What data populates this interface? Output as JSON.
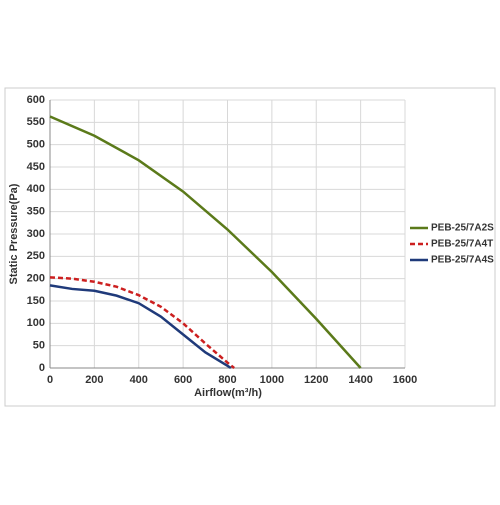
{
  "chart_data": {
    "type": "line",
    "xlabel": "Airflow(m³/h)",
    "ylabel": "Static Pressure(Pa)",
    "xlim": [
      0,
      1600
    ],
    "xticks": [
      0,
      200,
      400,
      600,
      800,
      1000,
      1200,
      1400,
      1600
    ],
    "ylim": [
      0,
      600
    ],
    "yticks": [
      0,
      50,
      100,
      150,
      200,
      250,
      300,
      350,
      400,
      450,
      500,
      550,
      600
    ],
    "grid": true,
    "legend": "right",
    "series": [
      {
        "name": "PEB-25/7A2S",
        "color": "#5b7a1a",
        "dashed": false,
        "x": [
          0,
          200,
          400,
          600,
          800,
          1000,
          1200,
          1400
        ],
        "values": [
          563,
          520,
          465,
          395,
          310,
          215,
          110,
          0
        ]
      },
      {
        "name": "PEB-25/7A4T",
        "color": "#cc1f1f",
        "dashed": true,
        "x": [
          0,
          100,
          200,
          300,
          400,
          500,
          600,
          700,
          800,
          830
        ],
        "values": [
          203,
          200,
          193,
          182,
          163,
          137,
          100,
          55,
          12,
          0
        ]
      },
      {
        "name": "PEB-25/7A4S",
        "color": "#1f3a7a",
        "dashed": false,
        "x": [
          0,
          100,
          200,
          300,
          400,
          500,
          600,
          700,
          800,
          815
        ],
        "values": [
          185,
          177,
          173,
          162,
          145,
          115,
          75,
          35,
          5,
          0
        ]
      }
    ]
  }
}
